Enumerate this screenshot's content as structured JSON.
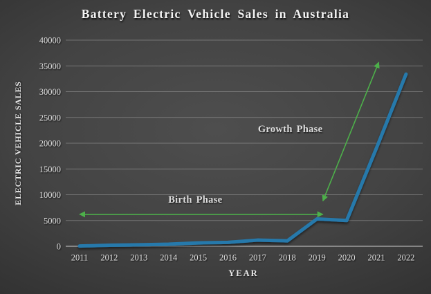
{
  "chart_data": {
    "type": "line",
    "title": "Battery Electric Vehicle Sales in Australia",
    "xlabel": "YEAR",
    "ylabel": "ELECTRIC VEHICLE SALES",
    "series_name": "Battery electric vehicle sales",
    "categories": [
      "2011",
      "2012",
      "2013",
      "2014",
      "2015",
      "2016",
      "2017",
      "2018",
      "2019",
      "2020",
      "2021",
      "2022"
    ],
    "values": [
      49,
      200,
      290,
      400,
      650,
      750,
      1200,
      1050,
      5300,
      5000,
      19000,
      33400
    ],
    "ylim": [
      0,
      40000
    ],
    "yticks": [
      0,
      5000,
      10000,
      15000,
      20000,
      25000,
      30000,
      35000,
      40000
    ],
    "grid": "horizontal",
    "legend": "none",
    "line_color": "#2679ab",
    "annotation_color": "#4db04a",
    "annotations": [
      {
        "text": "Birth Phase",
        "label_x": 2014.9,
        "label_y": 9100,
        "arrow": {
          "x1": 2011.0,
          "y1": 6200,
          "x2": 2019.2,
          "y2": 6200,
          "heads": "both"
        }
      },
      {
        "text": "Growth Phase",
        "label_x": 2018.1,
        "label_y": 22800,
        "arrow": {
          "x1": 2019.2,
          "y1": 8800,
          "x2": 2021.08,
          "y2": 35700,
          "heads": "both"
        }
      }
    ]
  }
}
